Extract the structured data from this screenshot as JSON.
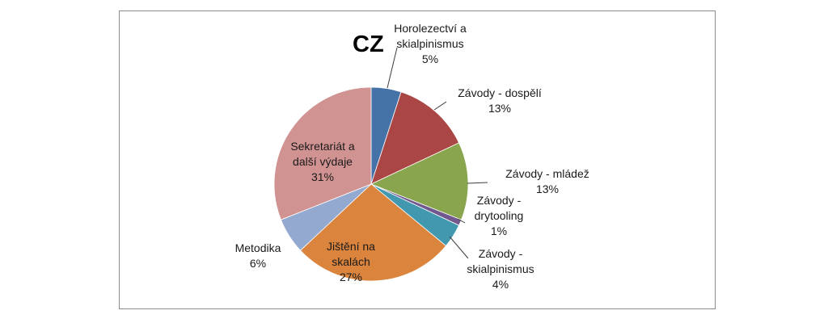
{
  "chart_data": {
    "type": "pie",
    "title": "CZ",
    "start_angle_deg": 0,
    "direction": "clockwise",
    "legend": "none",
    "slices": [
      {
        "label_lines": [
          "Horolezectví a",
          "skialpinismus"
        ],
        "value": 5,
        "value_label": "5%",
        "color": "#4572A7"
      },
      {
        "label_lines": [
          "Závody - dospělí"
        ],
        "value": 13,
        "value_label": "13%",
        "color": "#AA4643"
      },
      {
        "label_lines": [
          "Závody - mládež"
        ],
        "value": 13,
        "value_label": "13%",
        "color": "#89A54E"
      },
      {
        "label_lines": [
          "Závody -",
          "drytooling"
        ],
        "value": 1,
        "value_label": "1%",
        "color": "#71588F"
      },
      {
        "label_lines": [
          "Závody -",
          "skialpinismus"
        ],
        "value": 4,
        "value_label": "4%",
        "color": "#4198AF"
      },
      {
        "label_lines": [
          "Jištění na",
          "skalách"
        ],
        "value": 27,
        "value_label": "27%",
        "color": "#DB843D"
      },
      {
        "label_lines": [
          "Metodika"
        ],
        "value": 6,
        "value_label": "6%",
        "color": "#93A9CF"
      },
      {
        "label_lines": [
          "Sekretariát a",
          "další výdaje"
        ],
        "value": 31,
        "value_label": "31%",
        "color": "#D19392"
      }
    ]
  }
}
